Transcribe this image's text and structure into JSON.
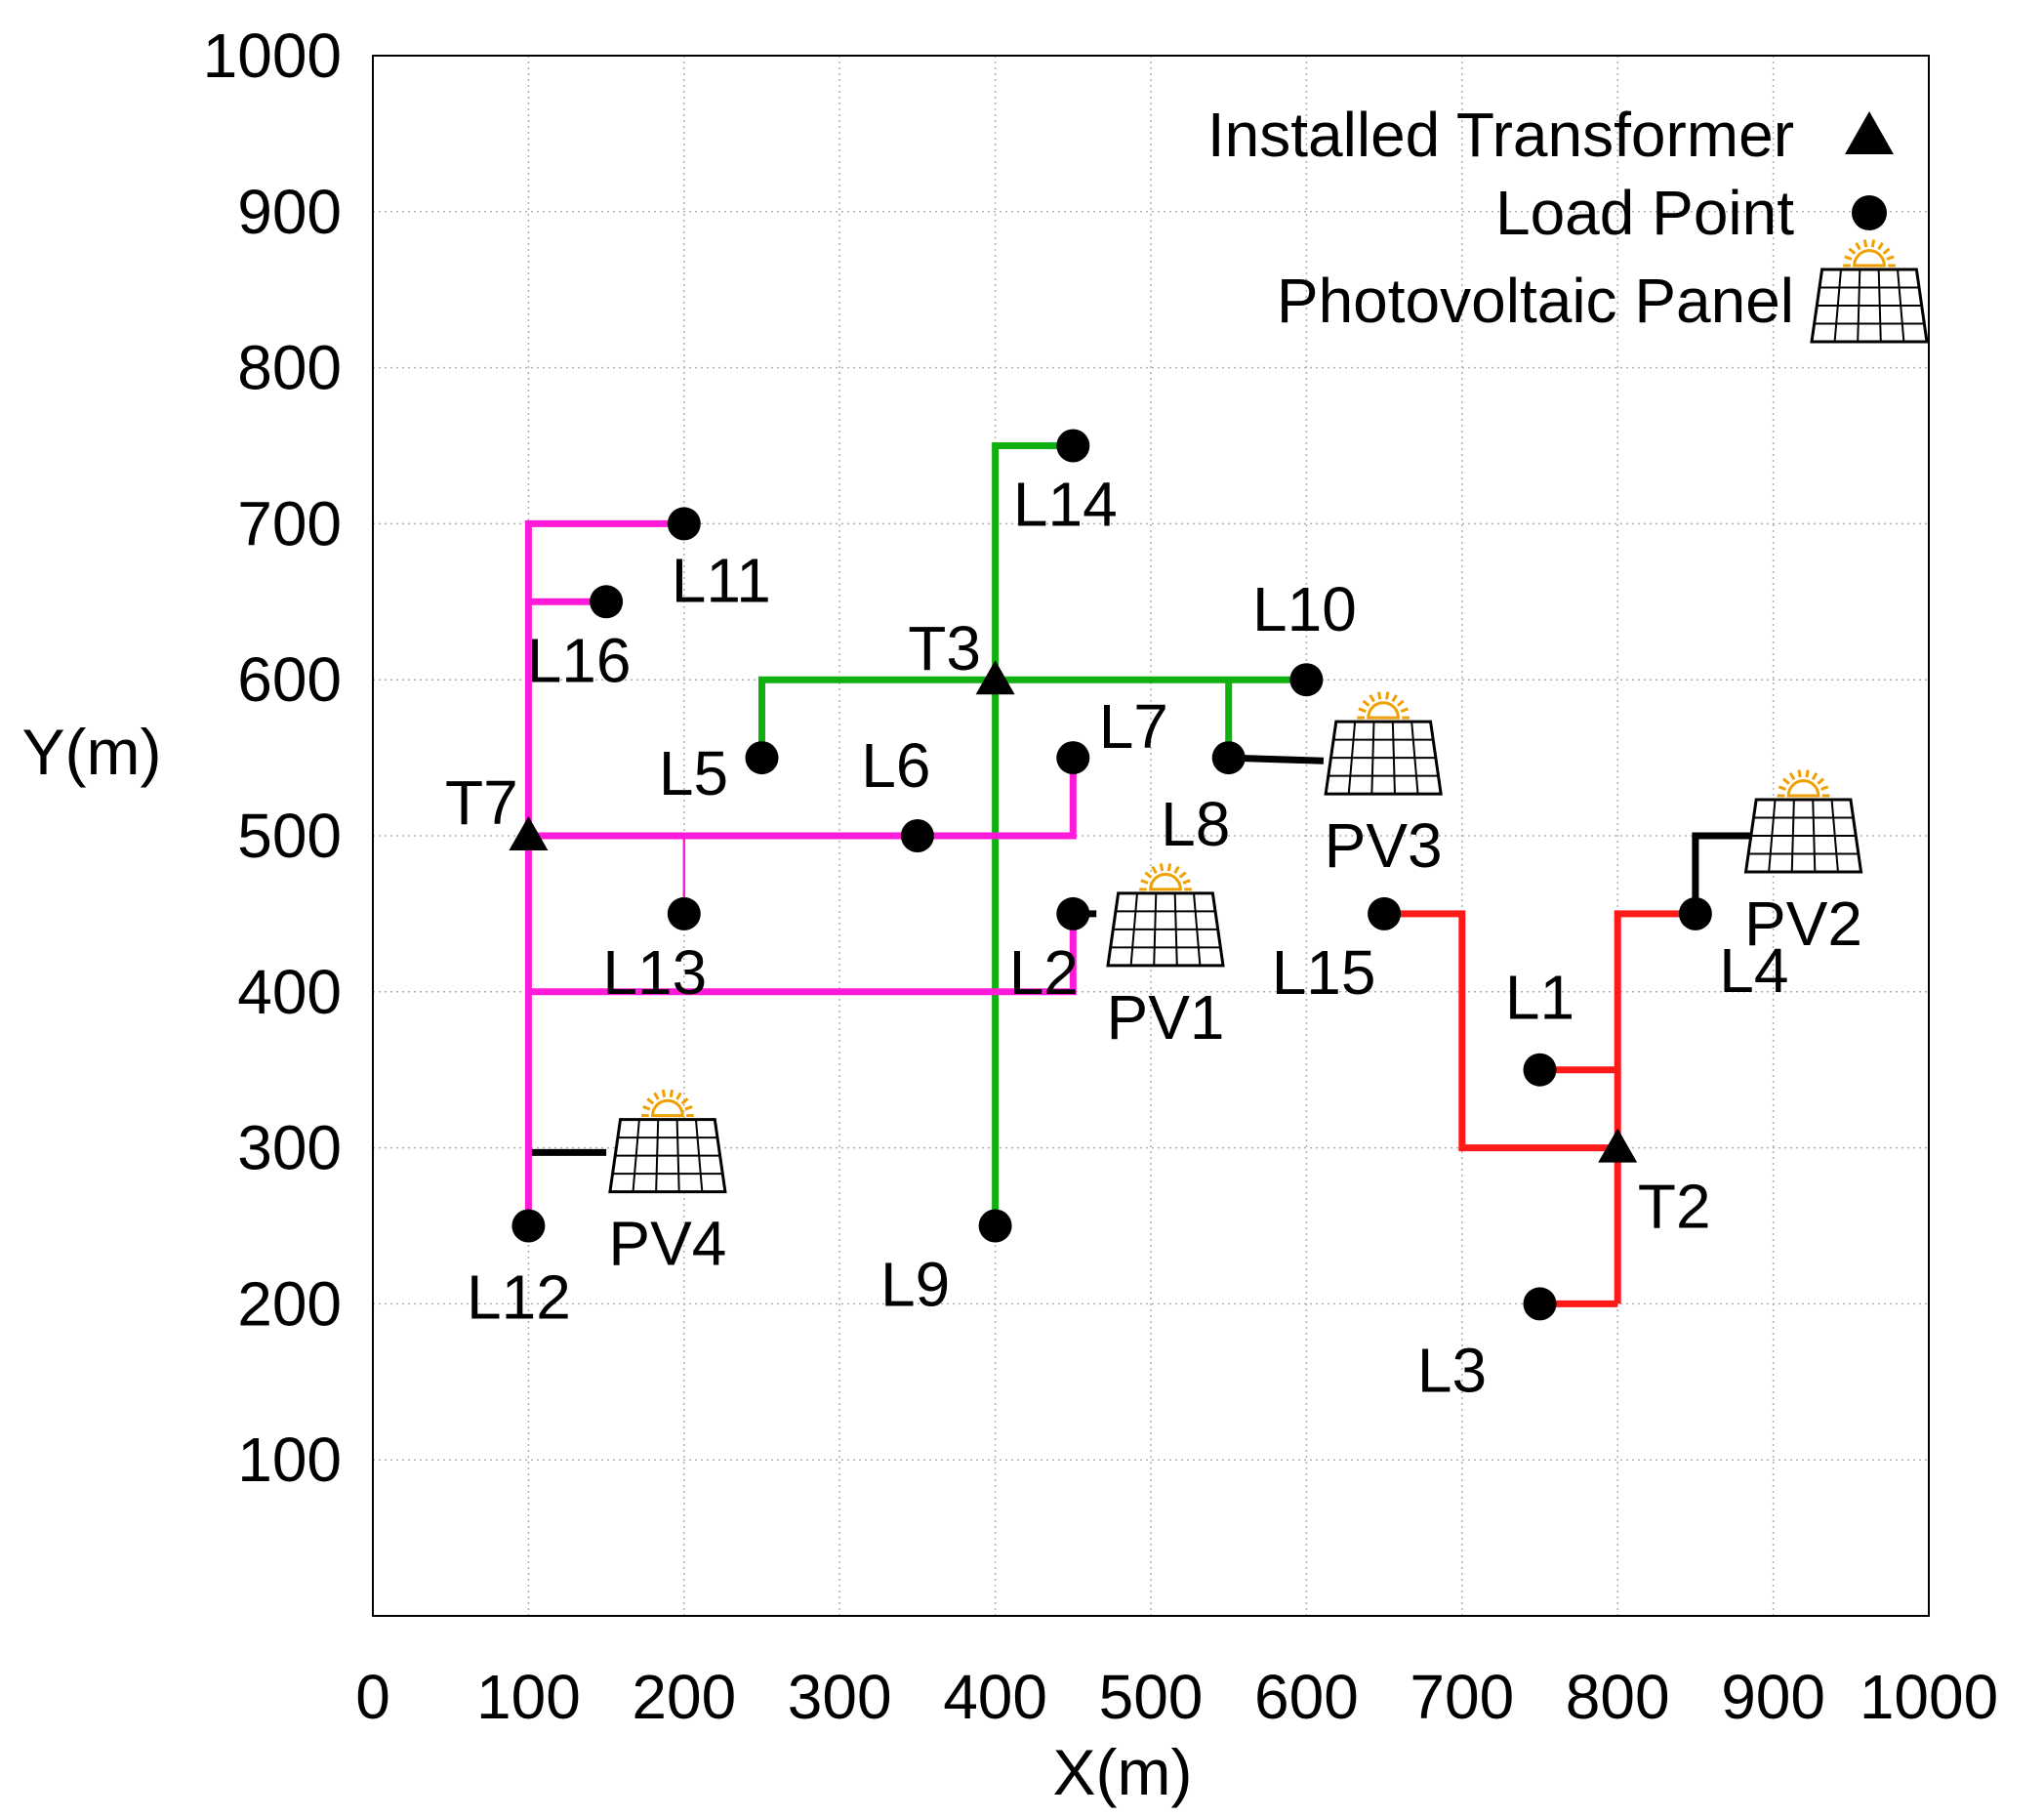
{
  "chart_data": {
    "type": "scatter",
    "xlabel": "X(m)",
    "ylabel": "Y(m)",
    "xlim": [
      0,
      1000
    ],
    "ylim": [
      0,
      1000
    ],
    "xticks": [
      "0",
      "100",
      "200",
      "300",
      "400",
      "500",
      "600",
      "700",
      "800",
      "900",
      "1000"
    ],
    "yticks": [
      "100",
      "200",
      "300",
      "400",
      "500",
      "600",
      "700",
      "800",
      "900",
      "1000"
    ],
    "grid": true,
    "legend_position": "top-right",
    "legend": [
      {
        "label": "Installed Transformer",
        "marker": "triangle"
      },
      {
        "label": "Load Point",
        "marker": "circle"
      },
      {
        "label": "Photovoltaic Panel",
        "marker": "pv-panel"
      }
    ],
    "colors": {
      "green": "#11b011",
      "magenta": "#ff1ad9",
      "red": "#ff1a1a",
      "black": "#000000",
      "sun": "#f0a000"
    },
    "transformers": [
      {
        "label": "T3",
        "x": 400,
        "y": 600
      },
      {
        "label": "T7",
        "x": 100,
        "y": 500
      },
      {
        "label": "T2",
        "x": 800,
        "y": 300
      }
    ],
    "loads": [
      {
        "label": "L1",
        "x": 750,
        "y": 350
      },
      {
        "label": "L2",
        "x": 450,
        "y": 450
      },
      {
        "label": "L3",
        "x": 750,
        "y": 200
      },
      {
        "label": "L4",
        "x": 850,
        "y": 450
      },
      {
        "label": "L5",
        "x": 250,
        "y": 550
      },
      {
        "label": "L6",
        "x": 350,
        "y": 500
      },
      {
        "label": "L7",
        "x": 450,
        "y": 550
      },
      {
        "label": "L8",
        "x": 550,
        "y": 550
      },
      {
        "label": "L9",
        "x": 400,
        "y": 250
      },
      {
        "label": "L10",
        "x": 600,
        "y": 600
      },
      {
        "label": "L11",
        "x": 200,
        "y": 700
      },
      {
        "label": "L12",
        "x": 100,
        "y": 250
      },
      {
        "label": "L13",
        "x": 200,
        "y": 450
      },
      {
        "label": "L14",
        "x": 450,
        "y": 750
      },
      {
        "label": "L15",
        "x": 650,
        "y": 450
      },
      {
        "label": "L16",
        "x": 150,
        "y": 650
      }
    ],
    "pv_panels": [
      {
        "label": "PV1",
        "x": 500,
        "y": 440
      },
      {
        "label": "PV2",
        "x": 910,
        "y": 500
      },
      {
        "label": "PV3",
        "x": 640,
        "y": 550
      },
      {
        "label": "PV4",
        "x": 180,
        "y": 295
      }
    ],
    "series": [
      {
        "color": "green",
        "paths": [
          [
            [
              250,
              550
            ],
            [
              250,
              600
            ],
            [
              600,
              600
            ]
          ],
          [
            [
              400,
              600
            ],
            [
              400,
              250
            ]
          ],
          [
            [
              400,
              600
            ],
            [
              400,
              750
            ],
            [
              450,
              750
            ]
          ],
          [
            [
              550,
              600
            ],
            [
              550,
              550
            ]
          ]
        ]
      },
      {
        "color": "magenta",
        "paths": [
          [
            [
              100,
              250
            ],
            [
              100,
              700
            ],
            [
              200,
              700
            ]
          ],
          [
            [
              100,
              650
            ],
            [
              150,
              650
            ]
          ],
          [
            [
              100,
              500
            ],
            [
              450,
              500
            ],
            [
              450,
              550
            ]
          ],
          [
            [
              100,
              400
            ],
            [
              450,
              400
            ],
            [
              450,
              450
            ]
          ]
        ]
      },
      {
        "color": "red",
        "paths": [
          [
            [
              650,
              450
            ],
            [
              700,
              450
            ],
            [
              700,
              300
            ],
            [
              800,
              300
            ]
          ],
          [
            [
              800,
              200
            ],
            [
              800,
              450
            ],
            [
              850,
              450
            ]
          ],
          [
            [
              750,
              350
            ],
            [
              800,
              350
            ]
          ],
          [
            [
              750,
              200
            ],
            [
              800,
              200
            ]
          ]
        ]
      }
    ],
    "thin_links": [
      {
        "color": "magenta",
        "points": [
          [
            200,
            500
          ],
          [
            200,
            450
          ]
        ]
      }
    ],
    "pv_links": [
      {
        "points": [
          [
            450,
            450
          ],
          [
            465,
            450
          ]
        ]
      },
      {
        "points": [
          [
            850,
            450
          ],
          [
            850,
            500
          ],
          [
            888,
            500
          ]
        ]
      },
      {
        "points": [
          [
            550,
            550
          ],
          [
            611,
            548
          ]
        ]
      },
      {
        "points": [
          [
            100,
            297
          ],
          [
            150,
            297
          ]
        ]
      }
    ]
  }
}
